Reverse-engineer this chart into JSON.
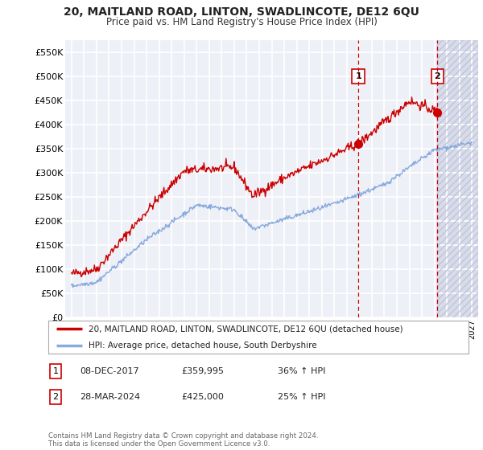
{
  "title": "20, MAITLAND ROAD, LINTON, SWADLINCOTE, DE12 6QU",
  "subtitle": "Price paid vs. HM Land Registry's House Price Index (HPI)",
  "ylim": [
    0,
    575000
  ],
  "yticks": [
    0,
    50000,
    100000,
    150000,
    200000,
    250000,
    300000,
    350000,
    400000,
    450000,
    500000,
    550000
  ],
  "ytick_labels": [
    "£0",
    "£50K",
    "£100K",
    "£150K",
    "£200K",
    "£250K",
    "£300K",
    "£350K",
    "£400K",
    "£450K",
    "£500K",
    "£550K"
  ],
  "background_color": "#ffffff",
  "plot_bg_color": "#eef0f8",
  "plot_bg_color_future": "#dde0ef",
  "grid_color": "#ffffff",
  "red_line_color": "#cc0000",
  "blue_line_color": "#88aadd",
  "vline_color": "#cc0000",
  "ann1_x": 2017.92,
  "ann1_y": 359995,
  "ann2_x": 2024.24,
  "ann2_y": 425000,
  "legend_entries": [
    "20, MAITLAND ROAD, LINTON, SWADLINCOTE, DE12 6QU (detached house)",
    "HPI: Average price, detached house, South Derbyshire"
  ],
  "table_rows": [
    {
      "num": "1",
      "date": "08-DEC-2017",
      "price": "£359,995",
      "change": "36% ↑ HPI"
    },
    {
      "num": "2",
      "date": "28-MAR-2024",
      "price": "£425,000",
      "change": "25% ↑ HPI"
    }
  ],
  "footnote": "Contains HM Land Registry data © Crown copyright and database right 2024.\nThis data is licensed under the Open Government Licence v3.0.",
  "xlim_left": 1994.5,
  "xlim_right": 2027.5,
  "future_start": 2024.24
}
